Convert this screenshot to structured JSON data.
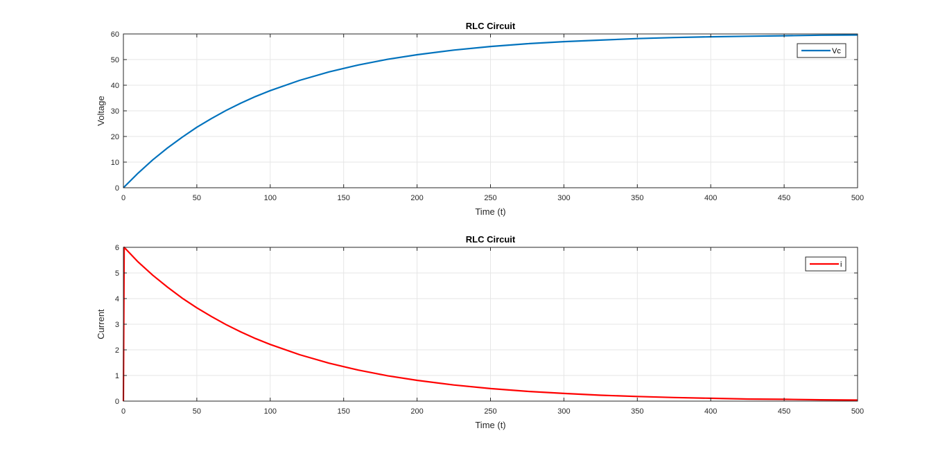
{
  "chart_data": [
    {
      "type": "line",
      "title": "RLC Circuit",
      "xlabel": "Time (t)",
      "ylabel": "Voltage",
      "xlim": [
        0,
        500
      ],
      "ylim": [
        0,
        60
      ],
      "xticks": [
        0,
        50,
        100,
        150,
        200,
        250,
        300,
        350,
        400,
        450,
        500
      ],
      "yticks": [
        0,
        10,
        20,
        30,
        40,
        50,
        60
      ],
      "grid": true,
      "legend": "top-right",
      "series": [
        {
          "name": "Vc",
          "color": "#0072BD",
          "x": [
            0,
            10,
            20,
            30,
            40,
            50,
            60,
            70,
            80,
            90,
            100,
            120,
            140,
            160,
            180,
            200,
            225,
            250,
            275,
            300,
            325,
            350,
            375,
            400,
            425,
            450,
            475,
            500
          ],
          "y": [
            0,
            5.7,
            10.9,
            15.5,
            19.7,
            23.6,
            27.0,
            30.2,
            33.0,
            35.6,
            37.9,
            41.9,
            45.2,
            47.9,
            50.1,
            51.9,
            53.7,
            55.1,
            56.2,
            57.0,
            57.6,
            58.2,
            58.6,
            58.9,
            59.1,
            59.3,
            59.5,
            59.6
          ]
        }
      ]
    },
    {
      "type": "line",
      "title": "RLC Circuit",
      "xlabel": "Time (t)",
      "ylabel": "Current",
      "xlim": [
        0,
        500
      ],
      "ylim": [
        0,
        6
      ],
      "xticks": [
        0,
        50,
        100,
        150,
        200,
        250,
        300,
        350,
        400,
        450,
        500
      ],
      "yticks": [
        0,
        1,
        2,
        3,
        4,
        5,
        6
      ],
      "grid": true,
      "legend": "top-right",
      "series": [
        {
          "name": "i",
          "color": "#FF0000",
          "x": [
            0,
            0.5,
            10,
            20,
            30,
            40,
            50,
            60,
            70,
            80,
            90,
            100,
            120,
            140,
            160,
            180,
            200,
            225,
            250,
            275,
            300,
            325,
            350,
            375,
            400,
            425,
            450,
            475,
            500
          ],
          "y": [
            0,
            6.0,
            5.43,
            4.91,
            4.45,
            4.02,
            3.64,
            3.3,
            2.98,
            2.7,
            2.44,
            2.21,
            1.81,
            1.48,
            1.21,
            0.99,
            0.81,
            0.63,
            0.49,
            0.38,
            0.3,
            0.23,
            0.18,
            0.14,
            0.11,
            0.08,
            0.07,
            0.05,
            0.04
          ]
        }
      ]
    }
  ]
}
